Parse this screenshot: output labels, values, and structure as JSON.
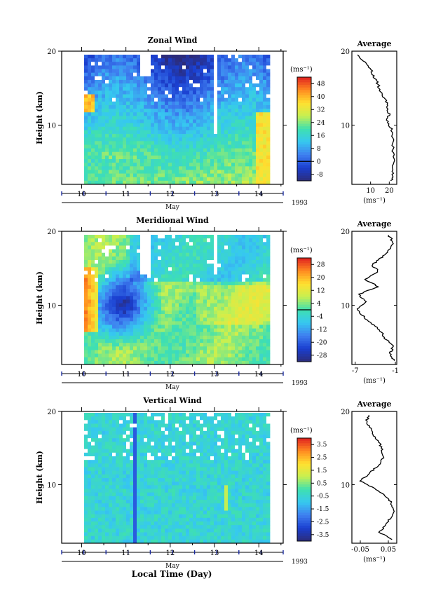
{
  "chart_data": [
    {
      "type": "heatmap",
      "title": "Zonal Wind",
      "ylabel": "Height (km)",
      "y_ticks": [
        "20",
        "10"
      ],
      "ylim": [
        2,
        20
      ],
      "x_ticks": [
        "10",
        "11",
        "12",
        "13",
        "14"
      ],
      "xlabel": "May",
      "year": "1993",
      "colorbar_unit": "(ms⁻¹)",
      "colorbar_ticks": [
        "48",
        "40",
        "32",
        "24",
        "16",
        "8",
        "0",
        "-8"
      ],
      "colorbar_range": [
        -8,
        52
      ],
      "average": {
        "title": "Average",
        "x_ticks": [
          "10",
          "20"
        ],
        "xlim": [
          0,
          24
        ],
        "y_ticks": [
          "20",
          "10"
        ],
        "unit": "(ms⁻¹)",
        "profile": [
          {
            "h": 2.5,
            "v": 21
          },
          {
            "h": 3.5,
            "v": 22
          },
          {
            "h": 5,
            "v": 22.5
          },
          {
            "h": 6.5,
            "v": 22
          },
          {
            "h": 8,
            "v": 22
          },
          {
            "h": 9.5,
            "v": 21
          },
          {
            "h": 10.5,
            "v": 19
          },
          {
            "h": 11.5,
            "v": 20
          },
          {
            "h": 12.5,
            "v": 19
          },
          {
            "h": 13.5,
            "v": 18
          },
          {
            "h": 14.5,
            "v": 15
          },
          {
            "h": 15.5,
            "v": 14
          },
          {
            "h": 16.5,
            "v": 12
          },
          {
            "h": 17.5,
            "v": 10
          },
          {
            "h": 18.5,
            "v": 7
          },
          {
            "h": 19.5,
            "v": 3
          }
        ]
      }
    },
    {
      "type": "heatmap",
      "title": "Meridional Wind",
      "ylabel": "Height (km)",
      "y_ticks": [
        "20",
        "10"
      ],
      "ylim": [
        2,
        20
      ],
      "x_ticks": [
        "10",
        "11",
        "12",
        "13",
        "14"
      ],
      "xlabel": "May",
      "year": "1993",
      "colorbar_unit": "(ms⁻¹)",
      "colorbar_ticks": [
        "28",
        "20",
        "12",
        "4",
        "-4",
        "-12",
        "-20",
        "-28"
      ],
      "colorbar_range": [
        -32,
        32
      ],
      "average": {
        "title": "Average",
        "x_ticks": [
          "-7",
          "-1"
        ],
        "xlim": [
          -7.5,
          -0.8
        ],
        "y_ticks": [
          "20",
          "10"
        ],
        "unit": "(ms⁻¹)",
        "profile": [
          {
            "h": 2.5,
            "v": -1.2
          },
          {
            "h": 3.5,
            "v": -1.8
          },
          {
            "h": 4.5,
            "v": -1.3
          },
          {
            "h": 5.5,
            "v": -2.6
          },
          {
            "h": 6.5,
            "v": -3.2
          },
          {
            "h": 7.5,
            "v": -4.5
          },
          {
            "h": 8.5,
            "v": -5.8
          },
          {
            "h": 9.5,
            "v": -6.8
          },
          {
            "h": 10.5,
            "v": -5.5
          },
          {
            "h": 11.5,
            "v": -6.5
          },
          {
            "h": 12.5,
            "v": -3.5
          },
          {
            "h": 13.5,
            "v": -5.5
          },
          {
            "h": 14.5,
            "v": -3.5
          },
          {
            "h": 15.5,
            "v": -4.5
          },
          {
            "h": 16.5,
            "v": -3.0
          },
          {
            "h": 17.5,
            "v": -2.0
          },
          {
            "h": 18.5,
            "v": -1.3
          },
          {
            "h": 19.5,
            "v": -2.0
          }
        ]
      }
    },
    {
      "type": "heatmap",
      "title": "Vertical Wind",
      "ylabel": "Height (km)",
      "y_ticks": [
        "20",
        "10"
      ],
      "ylim": [
        2,
        20
      ],
      "x_ticks": [
        "10",
        "11",
        "12",
        "13",
        "14"
      ],
      "xlabel": "May",
      "year": "1993",
      "colorbar_unit": "(ms⁻¹)",
      "colorbar_ticks": [
        "3.5",
        "2.5",
        "1.5",
        "0.5",
        "-0.5",
        "-1.5",
        "-2.5",
        "-3.5"
      ],
      "colorbar_range": [
        -4,
        4
      ],
      "average": {
        "title": "Average",
        "x_ticks": [
          "-0.05",
          "0.05"
        ],
        "xlim": [
          -0.08,
          0.08
        ],
        "y_ticks": [
          "20",
          "10"
        ],
        "unit": "(ms⁻¹)",
        "profile": [
          {
            "h": 2.5,
            "v": 0.06
          },
          {
            "h": 3.5,
            "v": 0.02
          },
          {
            "h": 4.5,
            "v": 0.04
          },
          {
            "h": 5.5,
            "v": 0.06
          },
          {
            "h": 6.5,
            "v": 0.07
          },
          {
            "h": 7.5,
            "v": 0.06
          },
          {
            "h": 8.5,
            "v": 0.04
          },
          {
            "h": 9.5,
            "v": 0.0
          },
          {
            "h": 10.5,
            "v": -0.05
          },
          {
            "h": 11.5,
            "v": -0.02
          },
          {
            "h": 12.5,
            "v": 0.01
          },
          {
            "h": 13.5,
            "v": 0.03
          },
          {
            "h": 14.5,
            "v": 0.03
          },
          {
            "h": 15.5,
            "v": 0.02
          },
          {
            "h": 16.5,
            "v": 0.0
          },
          {
            "h": 17.5,
            "v": -0.01
          },
          {
            "h": 18.5,
            "v": -0.03
          },
          {
            "h": 19.5,
            "v": -0.02
          }
        ]
      }
    }
  ],
  "footer": {
    "xlabel": "Local Time (Day)"
  },
  "colors": {
    "scale": [
      "#2c2c7a",
      "#1a3fd0",
      "#3f7ff0",
      "#36c8f0",
      "#3fe0b0",
      "#c8f050",
      "#ffe030",
      "#ff8a20",
      "#e02020"
    ],
    "missing": "#ffffff",
    "axis": "#000000",
    "tick_marker": "#1a2aa0"
  }
}
